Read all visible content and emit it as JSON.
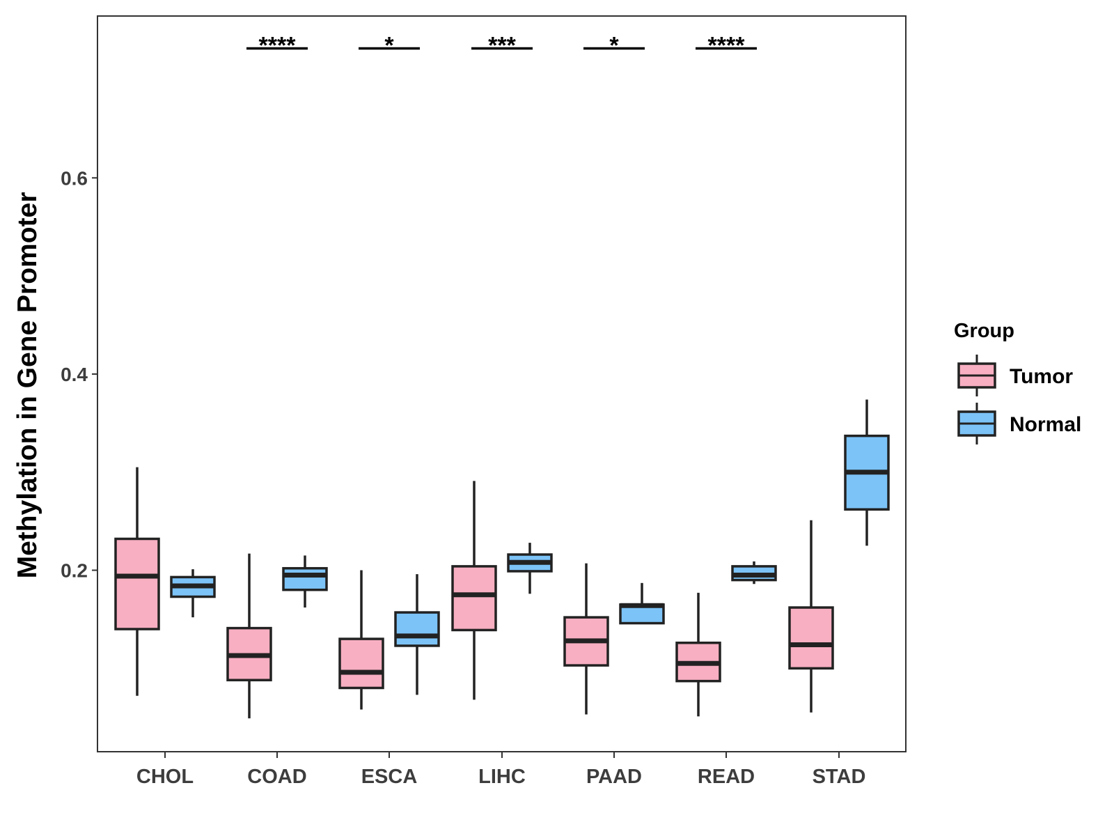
{
  "chart_data": {
    "type": "boxplot",
    "title": "",
    "xlabel": "",
    "ylabel": "Methylation in Gene Promoter",
    "ylim": [
      0.015,
      0.765
    ],
    "yticks": [
      "0.2",
      "0.4",
      "0.6"
    ],
    "grid": false,
    "legend_position": "right",
    "categories": [
      "CHOL",
      "COAD",
      "ESCA",
      "LIHC",
      "PAAD",
      "READ",
      "STAD"
    ],
    "legend": {
      "title": "Group",
      "entries": [
        "Tumor",
        "Normal"
      ]
    },
    "colors": {
      "Tumor": "#f8afc2",
      "Normal": "#7cc3f7",
      "outline": "#222222"
    },
    "series": [
      {
        "name": "Tumor",
        "boxes": [
          {
            "category": "CHOL",
            "lower_whisker": 0.072,
            "q1": 0.14,
            "median": 0.194,
            "q3": 0.232,
            "upper_whisker": 0.305
          },
          {
            "category": "COAD",
            "lower_whisker": 0.049,
            "q1": 0.088,
            "median": 0.113,
            "q3": 0.141,
            "upper_whisker": 0.217
          },
          {
            "category": "ESCA",
            "lower_whisker": 0.058,
            "q1": 0.08,
            "median": 0.096,
            "q3": 0.13,
            "upper_whisker": 0.2
          },
          {
            "category": "LIHC",
            "lower_whisker": 0.068,
            "q1": 0.139,
            "median": 0.175,
            "q3": 0.204,
            "upper_whisker": 0.291
          },
          {
            "category": "PAAD",
            "lower_whisker": 0.053,
            "q1": 0.103,
            "median": 0.128,
            "q3": 0.152,
            "upper_whisker": 0.207
          },
          {
            "category": "READ",
            "lower_whisker": 0.051,
            "q1": 0.087,
            "median": 0.105,
            "q3": 0.126,
            "upper_whisker": 0.177
          },
          {
            "category": "STAD",
            "lower_whisker": 0.055,
            "q1": 0.1,
            "median": 0.124,
            "q3": 0.162,
            "upper_whisker": 0.251
          }
        ]
      },
      {
        "name": "Normal",
        "boxes": [
          {
            "category": "CHOL",
            "lower_whisker": 0.152,
            "q1": 0.173,
            "median": 0.184,
            "q3": 0.193,
            "upper_whisker": 0.201
          },
          {
            "category": "COAD",
            "lower_whisker": 0.162,
            "q1": 0.18,
            "median": 0.195,
            "q3": 0.202,
            "upper_whisker": 0.215
          },
          {
            "category": "ESCA",
            "lower_whisker": 0.073,
            "q1": 0.123,
            "median": 0.133,
            "q3": 0.157,
            "upper_whisker": 0.196
          },
          {
            "category": "LIHC",
            "lower_whisker": 0.176,
            "q1": 0.199,
            "median": 0.208,
            "q3": 0.216,
            "upper_whisker": 0.228
          },
          {
            "category": "PAAD",
            "lower_whisker": 0.145,
            "q1": 0.146,
            "median": 0.164,
            "q3": 0.165,
            "upper_whisker": 0.187
          },
          {
            "category": "READ",
            "lower_whisker": 0.186,
            "q1": 0.19,
            "median": 0.195,
            "q3": 0.204,
            "upper_whisker": 0.209
          },
          {
            "category": "STAD",
            "lower_whisker": 0.225,
            "q1": 0.262,
            "median": 0.3,
            "q3": 0.337,
            "upper_whisker": 0.374
          }
        ]
      }
    ],
    "annotations": [
      {
        "category": "COAD",
        "label": "****",
        "y": 0.732
      },
      {
        "category": "ESCA",
        "label": "*",
        "y": 0.732
      },
      {
        "category": "LIHC",
        "label": "***",
        "y": 0.732
      },
      {
        "category": "PAAD",
        "label": "*",
        "y": 0.732
      },
      {
        "category": "READ",
        "label": "****",
        "y": 0.732
      }
    ]
  }
}
